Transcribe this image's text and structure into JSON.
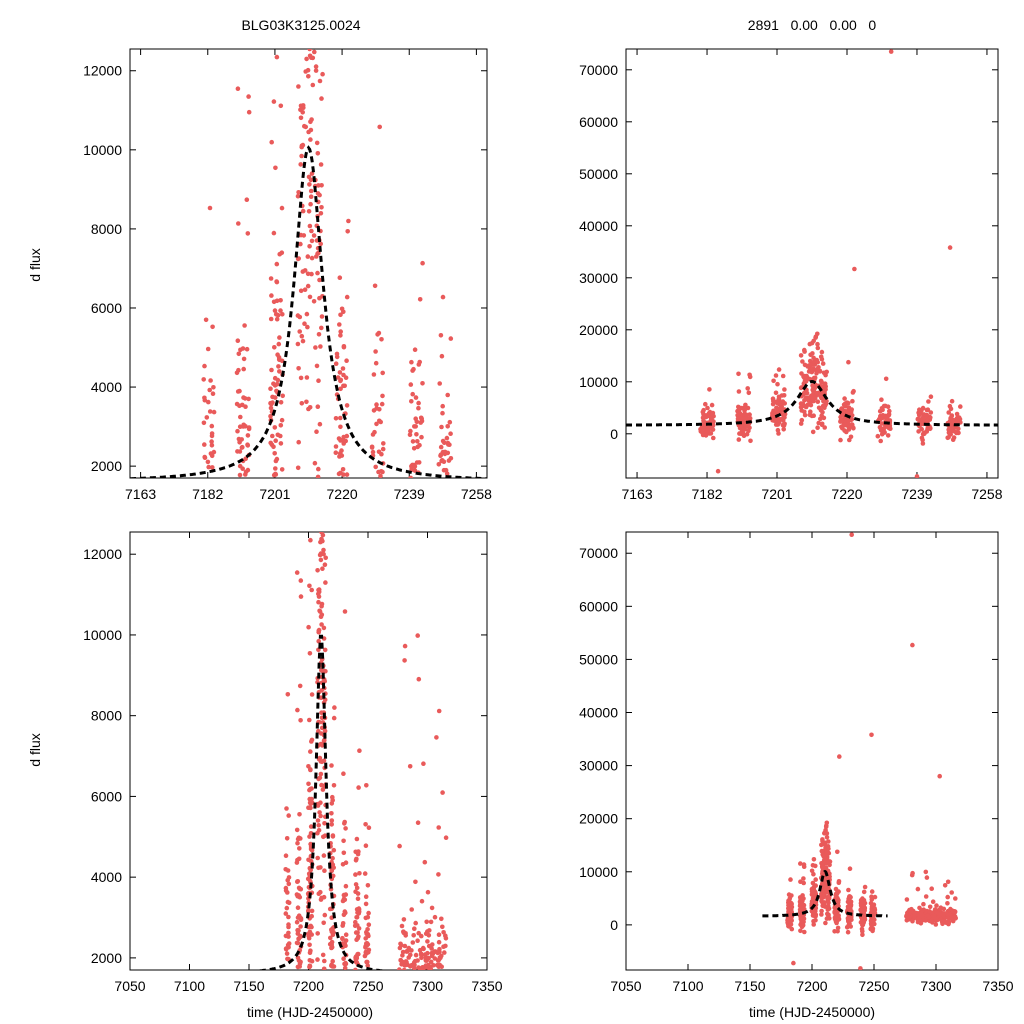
{
  "figure": {
    "title_left": "BLG03K3125.0024",
    "title_right": "2891   0.00   0.00   0",
    "ylabel": "d flux",
    "xlabel": "time (HJD-2450000)"
  },
  "colors": {
    "points": "#e95a5a",
    "model": "#000000",
    "axes": "#000000"
  },
  "chart_data": [
    {
      "type": "scatter",
      "panel": "top-left",
      "xlim": [
        7160,
        7261
      ],
      "ylim": [
        1700,
        12550
      ],
      "xticks": [
        7163,
        7182,
        7201,
        7220,
        7239,
        7258
      ],
      "yticks": [
        2000,
        4000,
        6000,
        8000,
        10000,
        12000
      ],
      "series": [
        {
          "name": "observations",
          "kind": "points"
        },
        {
          "name": "microlensing model",
          "kind": "dashed-line",
          "t0": 7210.5,
          "tE": 5,
          "baseline": 1600,
          "peak": 10050
        }
      ],
      "observing_seasons": [
        7182,
        7192,
        7201.5,
        7211,
        7220,
        7230,
        7241,
        7249
      ]
    },
    {
      "type": "scatter",
      "panel": "top-right",
      "xlim": [
        7160,
        7261
      ],
      "ylim": [
        -8500,
        74000
      ],
      "xticks": [
        7163,
        7182,
        7201,
        7220,
        7239,
        7258
      ],
      "yticks": [
        0,
        10000,
        20000,
        30000,
        40000,
        50000,
        60000,
        70000
      ],
      "series": [
        {
          "name": "observations",
          "kind": "points"
        },
        {
          "name": "microlensing model",
          "kind": "dashed-line",
          "t0": 7210.5,
          "tE": 5,
          "baseline": 1600,
          "peak": 10050
        }
      ]
    },
    {
      "type": "scatter",
      "panel": "bottom-left",
      "xlim": [
        7050,
        7350
      ],
      "ylim": [
        1700,
        12550
      ],
      "xticks": [
        7050,
        7100,
        7150,
        7200,
        7250,
        7300,
        7350
      ],
      "yticks": [
        2000,
        4000,
        6000,
        8000,
        10000,
        12000
      ],
      "series": [
        {
          "name": "observations",
          "kind": "points"
        },
        {
          "name": "microlensing model",
          "kind": "dashed-line",
          "t0": 7210.5,
          "tE": 5,
          "baseline": 1600,
          "peak": 10050
        }
      ]
    },
    {
      "type": "scatter",
      "panel": "bottom-right",
      "xlim": [
        7050,
        7350
      ],
      "ylim": [
        -8500,
        74000
      ],
      "xticks": [
        7050,
        7100,
        7150,
        7200,
        7250,
        7300,
        7350
      ],
      "yticks": [
        0,
        10000,
        20000,
        30000,
        40000,
        50000,
        60000,
        70000
      ],
      "series": [
        {
          "name": "observations",
          "kind": "points"
        },
        {
          "name": "microlensing model",
          "kind": "dashed-line",
          "t0": 7210.5,
          "tE": 5,
          "baseline": 1600,
          "peak": 10050
        }
      ]
    }
  ]
}
